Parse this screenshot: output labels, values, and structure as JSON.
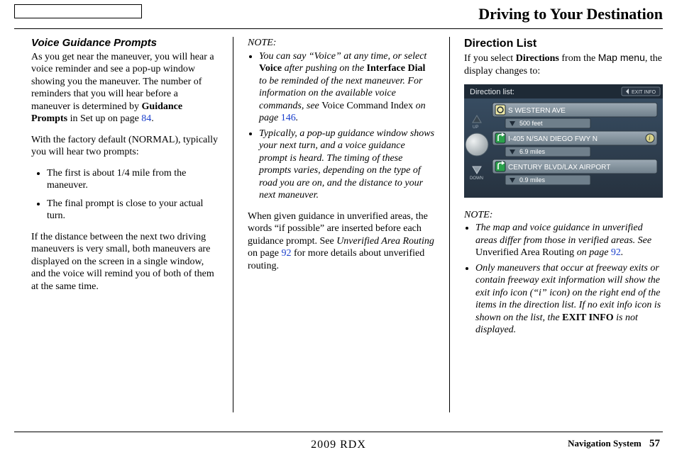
{
  "pageTitle": "Driving to Your Destination",
  "footerModel": "2009  RDX",
  "footerLabel": "Navigation System",
  "pageNumber": "57",
  "col1": {
    "heading": "Voice Guidance Prompts",
    "p1a": "As you get near the maneuver, you will hear a voice reminder and see a pop-up window showing you the maneuver. The number of reminders that you will hear before a maneuver is determined by ",
    "p1b": "Guidance Prompts",
    "p1c": " in Set up on page ",
    "p1link": "84",
    "p1d": ".",
    "p2": "With the factory default (NORMAL), typically you will hear two prompts:",
    "b1": "The first is about 1/4 mile from the maneuver.",
    "b2": "The final prompt is close to your actual turn.",
    "p3": "If the distance between the next two driving maneuvers is very small, both maneuvers are displayed on the screen in a single window, and the voice will remind you of both of them at the same time."
  },
  "col2": {
    "note": "NOTE:",
    "n1a": "You can say “Voice” at any time, or select ",
    "n1voice": "Voice",
    "n1b": " after pushing on the ",
    "n1dial": "Interface Dial",
    "n1c": " to be reminded of the next maneuver. For information on the available voice commands, see ",
    "n1idx": "Voice Command Index",
    "n1d": " on page ",
    "n1link": "146",
    "n1e": ".",
    "n2": "Typically, a pop-up guidance window shows your next turn, and a voice guidance prompt is heard. The timing of these prompts varies, depending on the type of road you are on, and the distance to your next maneuver.",
    "p1a": "When given guidance in unverified areas, the words “if possible” are inserted before each guidance prompt. See ",
    "p1ital": "Unverified Area Routing",
    "p1b": " on page ",
    "p1link": "92",
    "p1c": " for more details about unverified routing."
  },
  "col3": {
    "heading": "Direction List",
    "p1a": "If you select ",
    "p1bold": "Directions",
    "p1b": " from the ",
    "p1sans": "Map menu",
    "p1c": ", the display changes to:",
    "nav": {
      "title": "Direction list:",
      "exit": "EXIT INFO",
      "items": [
        {
          "icon": "circle",
          "label": "S WESTERN AVE",
          "dist": "500 feet",
          "info": false,
          "iconColor": "#efe9a7"
        },
        {
          "icon": "arrow",
          "label": "I-405 N/SAN DIEGO FWY N",
          "dist": "6.9 miles",
          "info": true,
          "iconColor": "#2aa04a"
        },
        {
          "icon": "arrow",
          "label": "CENTURY BLVD/LAX AIRPORT",
          "dist": "0.9 miles",
          "info": false,
          "iconColor": "#2aa04a"
        }
      ]
    },
    "note": "NOTE:",
    "n1a": "The map and voice guidance in unverified areas differ from those in verified areas. See ",
    "n1roman": "Unverified Area Routing",
    "n1b": " on page ",
    "n1link": "92",
    "n1c": ".",
    "n2a": "Only maneuvers that occur at freeway exits or contain freeway exit information will show the exit info icon (“i” icon) on the right end of the items in the direction list. If no exit info icon is shown on the list, the ",
    "n2bold": "EXIT INFO",
    "n2b": " is not displayed."
  }
}
